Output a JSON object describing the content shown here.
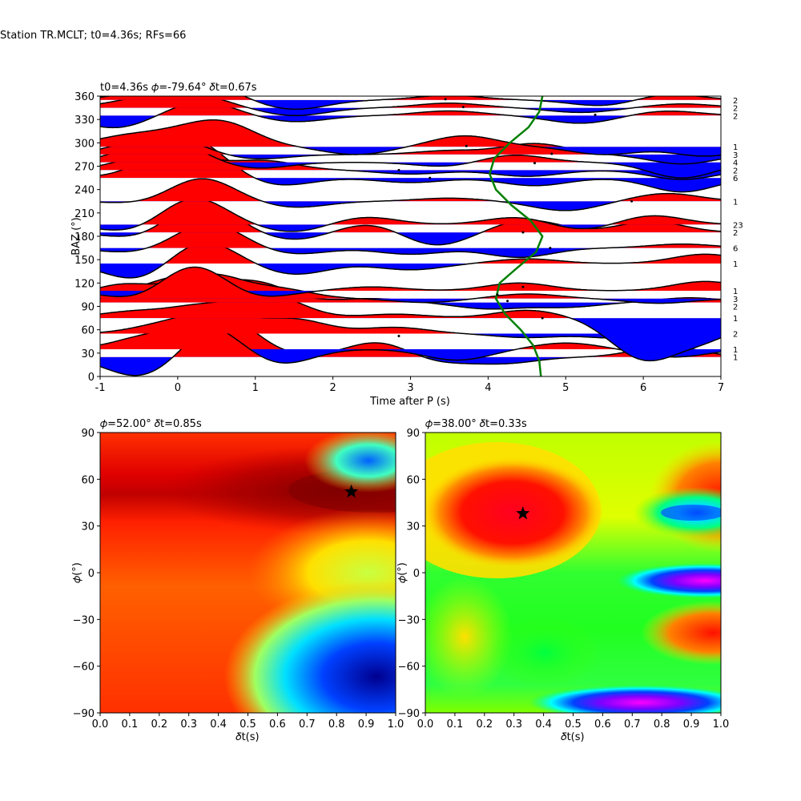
{
  "figure": {
    "suptitle": "Station TR.MCLT; t0=4.36s; RFs=66"
  },
  "chart_data": [
    {
      "type": "line",
      "panel": "top",
      "title": "t0=4.36s 𝜙=-79.64° 𝛿t=0.67s",
      "xlabel": "Time after P (s)",
      "ylabel": "BAZ (°)",
      "xlim": [
        -1,
        7
      ],
      "ylim": [
        0,
        360
      ],
      "xticks": [
        -1,
        0,
        1,
        2,
        3,
        4,
        5,
        6,
        7
      ],
      "yticks": [
        0,
        30,
        60,
        90,
        120,
        150,
        180,
        210,
        240,
        270,
        300,
        330,
        360
      ],
      "positive_fill_color": "#ff0000",
      "negative_fill_color": "#0000ff",
      "trace_color": "#000000",
      "marker_line_color": "#008000",
      "traces": [
        {
          "baz": 25,
          "count": "1",
          "peaks": [
            [
              -0.5,
              -25
            ],
            [
              0.6,
              50
            ],
            [
              2.6,
              20
            ],
            [
              3.3,
              -8
            ],
            [
              4.2,
              -8
            ],
            [
              6.3,
              14
            ]
          ]
        },
        {
          "baz": 35,
          "count": "1",
          "peaks": [
            [
              -0.4,
              15
            ],
            [
              0.4,
              30
            ],
            [
              1.3,
              -20
            ],
            [
              3.6,
              -14
            ],
            [
              5.0,
              8
            ],
            [
              6.4,
              -10
            ]
          ]
        },
        {
          "baz": 55,
          "count": "2",
          "peaks": [
            [
              -0.2,
              10
            ],
            [
              0.5,
              25
            ],
            [
              1.5,
              18
            ],
            [
              2.8,
              8
            ],
            [
              4.5,
              -5
            ],
            [
              5.8,
              -8
            ],
            [
              6.5,
              18
            ]
          ]
        },
        {
          "baz": 75,
          "count": "1",
          "peaks": [
            [
              -0.6,
              8
            ],
            [
              0.3,
              15
            ],
            [
              1.2,
              28
            ],
            [
              2.8,
              5
            ],
            [
              4.5,
              10
            ],
            [
              6.0,
              -50
            ],
            [
              6.8,
              -25
            ]
          ]
        },
        {
          "baz": 95,
          "count": "2",
          "peaks": [
            [
              -0.5,
              10
            ],
            [
              0.1,
              28
            ],
            [
              1.0,
              25
            ],
            [
              2.5,
              5
            ],
            [
              4.0,
              -8
            ],
            [
              5.0,
              -6
            ],
            [
              6.6,
              6
            ]
          ]
        },
        {
          "baz": 100,
          "count": "3",
          "peaks": [
            [
              -0.7,
              18
            ],
            [
              0.4,
              30
            ],
            [
              1.3,
              12
            ],
            [
              3.2,
              -5
            ],
            [
              4.5,
              6
            ],
            [
              6.2,
              -6
            ]
          ]
        },
        {
          "baz": 110,
          "count": "1",
          "peaks": [
            [
              -0.5,
              -12
            ],
            [
              0.2,
              35
            ],
            [
              1.0,
              -10
            ],
            [
              2.5,
              5
            ],
            [
              4.4,
              10
            ],
            [
              6.8,
              12
            ]
          ]
        },
        {
          "baz": 145,
          "count": "1",
          "peaks": [
            [
              -0.5,
              -22
            ],
            [
              0.3,
              30
            ],
            [
              1.5,
              -14
            ],
            [
              3.0,
              -8
            ],
            [
              4.5,
              6
            ],
            [
              6.8,
              12
            ]
          ]
        },
        {
          "baz": 165,
          "count": "6",
          "peaks": [
            [
              -0.6,
              -6
            ],
            [
              0.4,
              32
            ],
            [
              1.5,
              -8
            ],
            [
              3.0,
              -8
            ],
            [
              4.4,
              -12
            ],
            [
              6.5,
              5
            ]
          ]
        },
        {
          "baz": 185,
          "count": "2",
          "peaks": [
            [
              -0.5,
              -8
            ],
            [
              0.3,
              40
            ],
            [
              1.5,
              -10
            ],
            [
              2.5,
              12
            ],
            [
              3.3,
              -18
            ],
            [
              4.5,
              16
            ],
            [
              6.1,
              14
            ]
          ]
        },
        {
          "baz": 195,
          "count": "23",
          "peaks": [
            [
              -0.6,
              -10
            ],
            [
              0.2,
              35
            ],
            [
              1.5,
              -10
            ],
            [
              2.4,
              10
            ],
            [
              4.4,
              10
            ],
            [
              5.2,
              -8
            ],
            [
              6.1,
              12
            ]
          ]
        },
        {
          "baz": 225,
          "count": "1",
          "peaks": [
            [
              -0.4,
              -4
            ],
            [
              0.3,
              30
            ],
            [
              1.5,
              -8
            ],
            [
              3.5,
              4
            ],
            [
              5.0,
              -12
            ],
            [
              6.3,
              10
            ]
          ]
        },
        {
          "baz": 255,
          "count": "6",
          "peaks": [
            [
              -0.3,
              10
            ],
            [
              0.2,
              45
            ],
            [
              1.3,
              -10
            ],
            [
              3.0,
              -6
            ],
            [
              4.6,
              -10
            ],
            [
              6.5,
              -18
            ]
          ]
        },
        {
          "baz": 265,
          "count": "2",
          "peaks": [
            [
              -0.5,
              10
            ],
            [
              0.0,
              18
            ],
            [
              1.1,
              12
            ],
            [
              3.0,
              -5
            ],
            [
              4.5,
              -8
            ],
            [
              6.5,
              -12
            ]
          ]
        },
        {
          "baz": 275,
          "count": "4",
          "peaks": [
            [
              -0.5,
              10
            ],
            [
              -0.1,
              24
            ],
            [
              1.0,
              -8
            ],
            [
              3.5,
              -6
            ],
            [
              4.3,
              10
            ],
            [
              6.5,
              -20
            ]
          ]
        },
        {
          "baz": 285,
          "count": "3",
          "peaks": [
            [
              -0.6,
              8
            ],
            [
              -0.1,
              20
            ],
            [
              1.0,
              -6
            ],
            [
              3.5,
              5
            ],
            [
              4.6,
              14
            ],
            [
              6.5,
              -12
            ]
          ]
        },
        {
          "baz": 295,
          "count": "1",
          "peaks": [
            [
              -0.7,
              12
            ],
            [
              0.0,
              14
            ],
            [
              0.6,
              28
            ],
            [
              2.3,
              -10
            ],
            [
              3.7,
              14
            ],
            [
              5.5,
              -10
            ],
            [
              6.8,
              -12
            ]
          ]
        },
        {
          "baz": 335,
          "count": "2",
          "peaks": [
            [
              -0.8,
              -16
            ],
            [
              0.3,
              18
            ],
            [
              1.5,
              -8
            ],
            [
              3.5,
              6
            ],
            [
              5.2,
              -10
            ],
            [
              6.3,
              6
            ]
          ]
        },
        {
          "baz": 345,
          "count": "2",
          "peaks": [
            [
              -0.5,
              10
            ],
            [
              0.2,
              16
            ],
            [
              1.5,
              -10
            ],
            [
              3.5,
              6
            ],
            [
              5.2,
              -6
            ],
            [
              6.5,
              5
            ]
          ]
        },
        {
          "baz": 355,
          "count": "2",
          "peaks": [
            [
              -0.6,
              5
            ],
            [
              0.2,
              30
            ],
            [
              1.5,
              -12
            ],
            [
              3.5,
              6
            ],
            [
              5.5,
              -8
            ],
            [
              6.3,
              8
            ]
          ]
        }
      ],
      "marker_line": [
        [
          4.68,
          0
        ],
        [
          4.66,
          20
        ],
        [
          4.58,
          40
        ],
        [
          4.42,
          60
        ],
        [
          4.22,
          80
        ],
        [
          4.1,
          100
        ],
        [
          4.15,
          120
        ],
        [
          4.38,
          140
        ],
        [
          4.62,
          160
        ],
        [
          4.7,
          180
        ],
        [
          4.55,
          200
        ],
        [
          4.3,
          220
        ],
        [
          4.1,
          240
        ],
        [
          4.02,
          260
        ],
        [
          4.08,
          280
        ],
        [
          4.28,
          300
        ],
        [
          4.52,
          320
        ],
        [
          4.66,
          340
        ],
        [
          4.7,
          360
        ]
      ],
      "dots": [
        [
          2.85,
          52
        ],
        [
          4.7,
          75
        ],
        [
          4.25,
          97
        ],
        [
          4.12,
          105
        ],
        [
          4.45,
          115
        ],
        [
          4.8,
          165
        ],
        [
          4.45,
          185
        ],
        [
          5.85,
          225
        ],
        [
          3.25,
          255
        ],
        [
          2.85,
          265
        ],
        [
          4.6,
          274
        ],
        [
          4.82,
          286
        ],
        [
          3.72,
          296
        ],
        [
          3.45,
          356
        ],
        [
          3.68,
          346
        ],
        [
          5.38,
          336
        ]
      ]
    },
    {
      "type": "heatmap",
      "panel": "bottom-left",
      "title": "𝜙=52.00° 𝛿t=0.85s",
      "xlabel": "𝛿t(s)",
      "ylabel": "𝜙(°)",
      "xlim": [
        0,
        1
      ],
      "ylim": [
        -90,
        90
      ],
      "xticks": [
        "0.0",
        "0.1",
        "0.2",
        "0.3",
        "0.4",
        "0.5",
        "0.6",
        "0.7",
        "0.8",
        "0.9",
        "1.0"
      ],
      "yticks": [
        -90,
        -60,
        -30,
        0,
        30,
        60,
        90
      ],
      "colormap": "jet",
      "best": {
        "dt": 0.85,
        "phi": 52
      }
    },
    {
      "type": "heatmap",
      "panel": "bottom-right",
      "title": "𝜙=38.00° 𝛿t=0.33s",
      "xlabel": "𝛿t(s)",
      "ylabel": "𝜙(°)",
      "xlim": [
        0,
        1
      ],
      "ylim": [
        -90,
        90
      ],
      "xticks": [
        "0.0",
        "0.1",
        "0.2",
        "0.3",
        "0.4",
        "0.5",
        "0.6",
        "0.7",
        "0.8",
        "0.9",
        "1.0"
      ],
      "yticks": [
        -90,
        -60,
        -30,
        0,
        30,
        60,
        90
      ],
      "colormap": "hsv",
      "best": {
        "dt": 0.33,
        "phi": 38
      }
    }
  ]
}
